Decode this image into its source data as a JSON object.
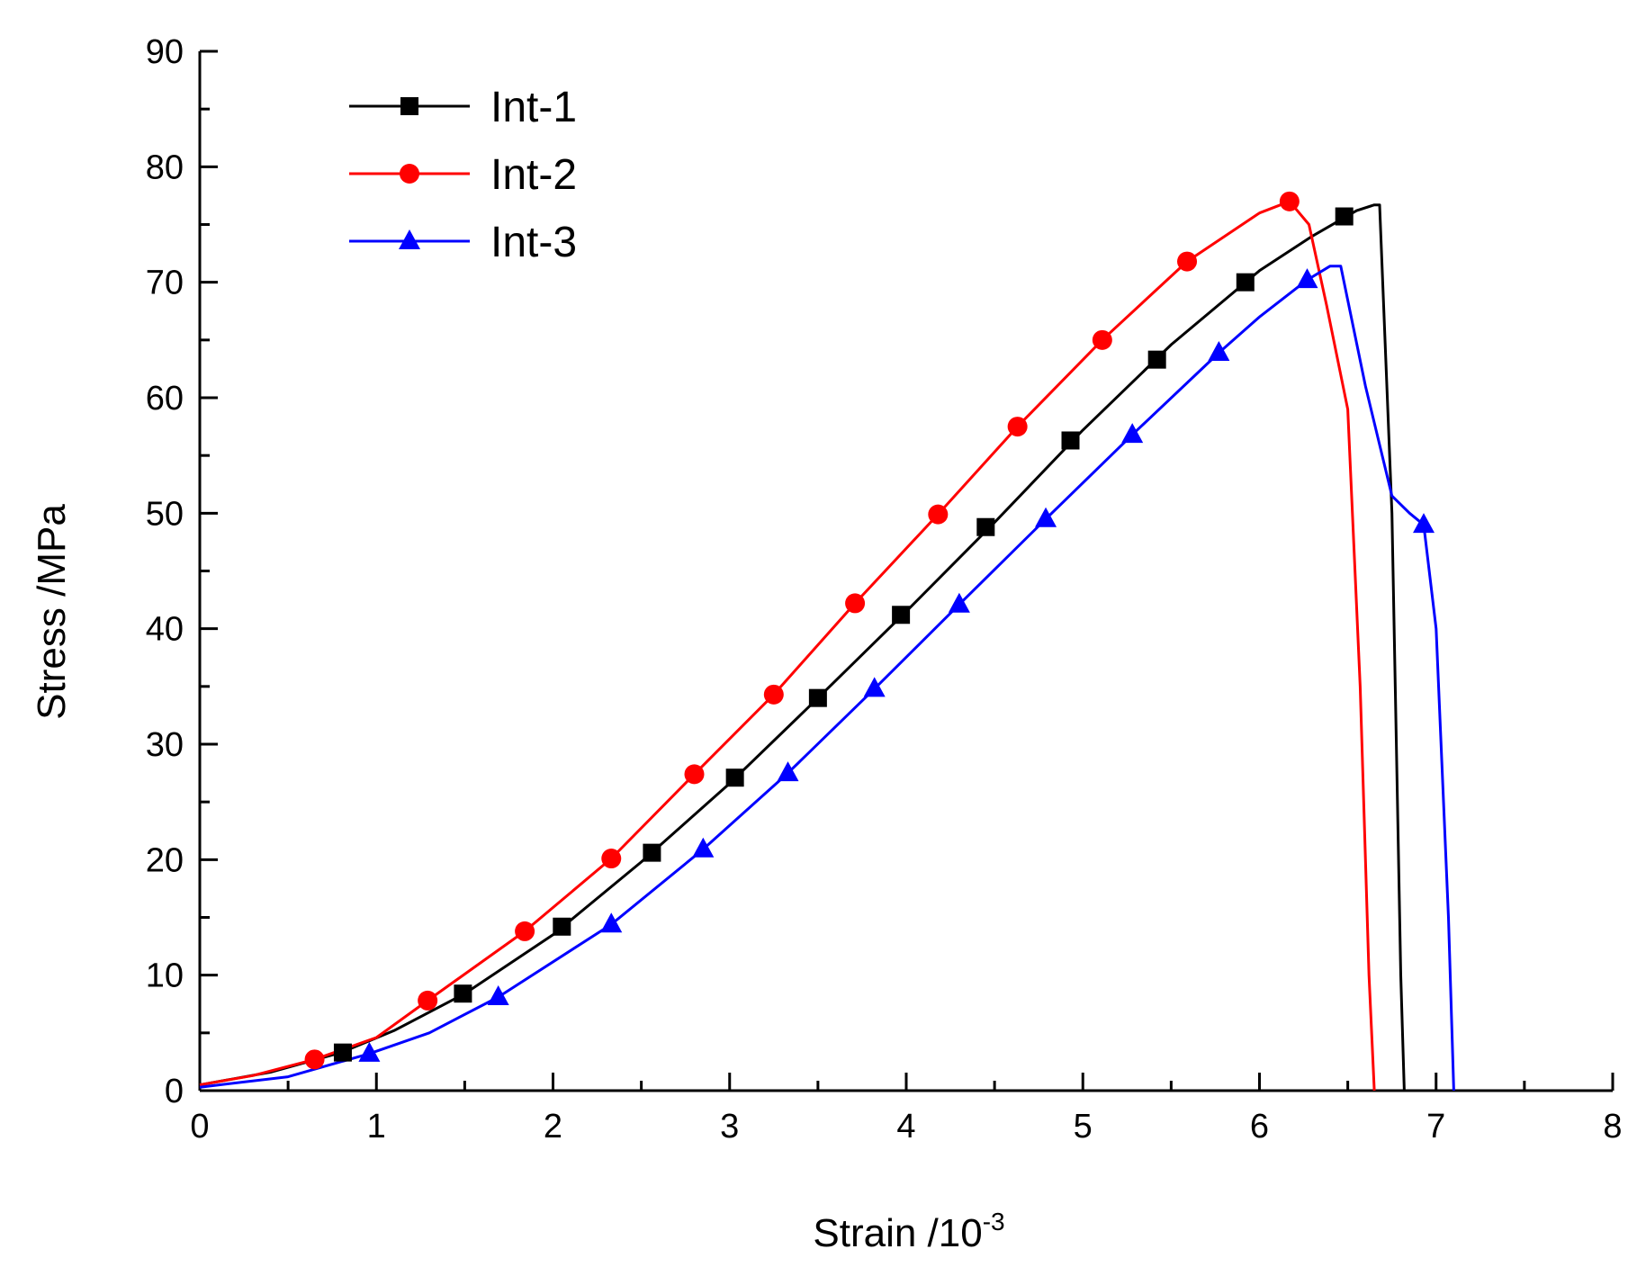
{
  "chart_data": {
    "type": "line",
    "title": "",
    "xlabel": "Strain /10",
    "xlabel_superscript": "-3",
    "ylabel": "Stress /MPa",
    "xlim": [
      0,
      8
    ],
    "ylim": [
      0,
      90
    ],
    "xticks": [
      0,
      1,
      2,
      3,
      4,
      5,
      6,
      7,
      8
    ],
    "yticks": [
      0,
      10,
      20,
      30,
      40,
      50,
      60,
      70,
      80,
      90
    ],
    "grid": false,
    "legend_position": "top-left",
    "series": [
      {
        "name": "Int-1",
        "color": "#000000",
        "marker": "square",
        "curve": [
          [
            0,
            0.5
          ],
          [
            0.4,
            1.6
          ],
          [
            0.8,
            3.3
          ],
          [
            1.1,
            5.2
          ],
          [
            1.5,
            8.4
          ],
          [
            2.0,
            13.5
          ],
          [
            2.5,
            19.8
          ],
          [
            3.0,
            26.6
          ],
          [
            3.5,
            34.0
          ],
          [
            4.0,
            41.5
          ],
          [
            4.5,
            49.2
          ],
          [
            5.0,
            57.2
          ],
          [
            5.5,
            64.6
          ],
          [
            6.0,
            71.0
          ],
          [
            6.3,
            74.0
          ],
          [
            6.55,
            76.2
          ],
          [
            6.65,
            76.7
          ],
          [
            6.68,
            76.7
          ],
          [
            6.75,
            50
          ],
          [
            6.8,
            10
          ],
          [
            6.82,
            0
          ]
        ],
        "markers": [
          [
            0.81,
            3.3
          ],
          [
            1.49,
            8.4
          ],
          [
            2.05,
            14.2
          ],
          [
            2.56,
            20.6
          ],
          [
            3.03,
            27.1
          ],
          [
            3.5,
            34.0
          ],
          [
            3.97,
            41.2
          ],
          [
            4.45,
            48.8
          ],
          [
            4.93,
            56.3
          ],
          [
            5.42,
            63.3
          ],
          [
            5.92,
            70.0
          ],
          [
            6.48,
            75.7
          ]
        ]
      },
      {
        "name": "Int-2",
        "color": "#ff0000",
        "marker": "circle",
        "curve": [
          [
            0,
            0.5
          ],
          [
            0.3,
            1.3
          ],
          [
            0.65,
            2.7
          ],
          [
            1.0,
            4.6
          ],
          [
            1.29,
            7.8
          ],
          [
            1.84,
            13.8
          ],
          [
            2.33,
            20.1
          ],
          [
            2.8,
            27.4
          ],
          [
            3.25,
            34.3
          ],
          [
            3.71,
            42.2
          ],
          [
            4.18,
            49.9
          ],
          [
            4.63,
            57.5
          ],
          [
            5.11,
            65.0
          ],
          [
            5.59,
            71.8
          ],
          [
            6.0,
            76.0
          ],
          [
            6.17,
            77.0
          ],
          [
            6.28,
            75.0
          ],
          [
            6.38,
            68.0
          ],
          [
            6.5,
            59.0
          ],
          [
            6.57,
            35.0
          ],
          [
            6.62,
            10.0
          ],
          [
            6.65,
            0
          ]
        ],
        "markers": [
          [
            0.65,
            2.7
          ],
          [
            1.29,
            7.8
          ],
          [
            1.84,
            13.8
          ],
          [
            2.33,
            20.1
          ],
          [
            2.8,
            27.4
          ],
          [
            3.25,
            34.3
          ],
          [
            3.71,
            42.2
          ],
          [
            4.18,
            49.9
          ],
          [
            4.63,
            57.5
          ],
          [
            5.11,
            65.0
          ],
          [
            5.59,
            71.8
          ],
          [
            6.17,
            77.0
          ]
        ]
      },
      {
        "name": "Int-3",
        "color": "#0000ff",
        "marker": "triangle",
        "curve": [
          [
            0,
            0.3
          ],
          [
            0.5,
            1.2
          ],
          [
            0.96,
            3.2
          ],
          [
            1.3,
            5.0
          ],
          [
            1.69,
            8.1
          ],
          [
            2.33,
            14.4
          ],
          [
            2.85,
            20.9
          ],
          [
            3.33,
            27.5
          ],
          [
            3.82,
            34.8
          ],
          [
            4.3,
            42.1
          ],
          [
            4.79,
            49.5
          ],
          [
            5.28,
            56.8
          ],
          [
            5.77,
            63.9
          ],
          [
            6.0,
            67.0
          ],
          [
            6.27,
            70.2
          ],
          [
            6.4,
            71.4
          ],
          [
            6.46,
            71.4
          ],
          [
            6.6,
            61.0
          ],
          [
            6.75,
            51.5
          ],
          [
            6.85,
            50.0
          ],
          [
            6.93,
            49.0
          ],
          [
            7.0,
            40.0
          ],
          [
            7.07,
            15.0
          ],
          [
            7.1,
            0
          ]
        ],
        "markers": [
          [
            0.96,
            3.2
          ],
          [
            1.69,
            8.1
          ],
          [
            2.33,
            14.4
          ],
          [
            2.85,
            20.9
          ],
          [
            3.33,
            27.5
          ],
          [
            3.82,
            34.8
          ],
          [
            4.3,
            42.1
          ],
          [
            4.79,
            49.5
          ],
          [
            5.28,
            56.8
          ],
          [
            5.77,
            63.9
          ],
          [
            6.27,
            70.2
          ],
          [
            6.93,
            49.0
          ]
        ]
      }
    ]
  }
}
